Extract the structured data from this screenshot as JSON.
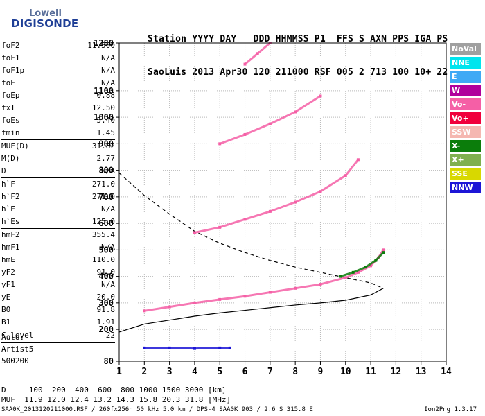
{
  "logo": {
    "line1": "Lowell",
    "line2": "DIGISONDE"
  },
  "header": {
    "row1": "Station YYYY DAY   DDD HHMMSS P1  FFS S AXN PPS IGA PS",
    "row2": "SaoLuis 2013 Apr30 120 211000 RSF 005 2 713 100 10+ 22"
  },
  "params": [
    {
      "name": "foF2",
      "value": "11.500"
    },
    {
      "name": "foF1",
      "value": "N/A"
    },
    {
      "name": "foF1p",
      "value": "N/A"
    },
    {
      "name": "foE",
      "value": "N/A"
    },
    {
      "name": "foEp",
      "value": "0.88"
    },
    {
      "name": "fxI",
      "value": "12.50"
    },
    {
      "name": "foEs",
      "value": "5.40"
    },
    {
      "name": "fmin",
      "value": "1.45"
    },
    {
      "sep": true
    },
    {
      "name": "MUF(D)",
      "value": "31.82"
    },
    {
      "name": "M(D)",
      "value": "2.77"
    },
    {
      "name": "D",
      "value": "N/A"
    },
    {
      "sep": true
    },
    {
      "name": "h`F",
      "value": "271.0"
    },
    {
      "name": "h`F2",
      "value": "271.0"
    },
    {
      "name": "h`E",
      "value": "N/A"
    },
    {
      "name": "h`Es",
      "value": "125.0"
    },
    {
      "sep": true
    },
    {
      "name": "hmF2",
      "value": "355.4"
    },
    {
      "name": "hmF1",
      "value": "N/A"
    },
    {
      "name": "hmE",
      "value": "110.0"
    },
    {
      "name": "yF2",
      "value": "91.0"
    },
    {
      "name": "yF1",
      "value": "N/A"
    },
    {
      "name": "yE",
      "value": "20.0"
    },
    {
      "name": "B0",
      "value": "91.8"
    },
    {
      "name": "B1",
      "value": "1.91"
    },
    {
      "sep": true
    },
    {
      "name": "C-level",
      "value": "22"
    },
    {
      "sep": true
    }
  ],
  "auto": {
    "line1": "Auto:",
    "line2": "Artist5",
    "line3": "500200"
  },
  "legend": [
    {
      "label": "NoVal",
      "color": "#a0a0a0"
    },
    {
      "label": "NNE",
      "color": "#00e5ee"
    },
    {
      "label": "E",
      "color": "#3fa9f5"
    },
    {
      "label": "W",
      "color": "#b0009c"
    },
    {
      "label": "Vo-",
      "color": "#f55fa6"
    },
    {
      "label": "Vo+",
      "color": "#f0003c"
    },
    {
      "label": "SSW",
      "color": "#f5b7b1"
    },
    {
      "label": "X-",
      "color": "#0b7d0b"
    },
    {
      "label": "X+",
      "color": "#7fb04f"
    },
    {
      "label": "SSE",
      "color": "#d8d800"
    },
    {
      "label": "NNW",
      "color": "#1c15d6"
    }
  ],
  "muf_table": {
    "row1": "D     100  200  400  600  800 1000 1500 3000 [km]",
    "row2": "MUF  11.9 12.0 12.4 13.2 14.3 15.8 20.3 31.8 [MHz]"
  },
  "footer": {
    "left": "SAA0K_2013120211000.RSF / 260fx256h 50 kHz 5.0 km / DPS-4 SAA0K 903 / 2.6 S 315.8 E",
    "right": "Ion2Png 1.3.17"
  },
  "chart_data": {
    "type": "scatter",
    "xlim": [
      1,
      14
    ],
    "ylim": [
      80,
      1280
    ],
    "x_ticks": [
      1,
      2,
      3,
      4,
      5,
      6,
      7,
      8,
      9,
      10,
      11,
      12,
      13,
      14
    ],
    "y_ticks": [
      80,
      200,
      300,
      400,
      500,
      600,
      700,
      800,
      900,
      1000,
      1100,
      1280
    ],
    "grid": true,
    "traces": [
      {
        "name": "O-trace F",
        "color": "#f55fa6",
        "x": [
          2.0,
          3.0,
          4.0,
          5.0,
          6.0,
          7.0,
          8.0,
          9.0,
          10.0,
          10.5,
          11.0,
          11.3,
          11.5
        ],
        "y": [
          270,
          285,
          300,
          313,
          325,
          340,
          355,
          370,
          395,
          415,
          440,
          470,
          500
        ]
      },
      {
        "name": "X-trace F",
        "color": "#0b7d0b",
        "x": [
          9.8,
          10.3,
          10.8,
          11.2,
          11.5
        ],
        "y": [
          400,
          415,
          435,
          460,
          490
        ]
      },
      {
        "name": "2F",
        "color": "#f55fa6",
        "x": [
          4.0,
          5.0,
          6.0,
          7.0,
          8.0,
          9.0,
          10.0,
          10.5
        ],
        "y": [
          565,
          585,
          615,
          645,
          680,
          720,
          780,
          840
        ]
      },
      {
        "name": "3F",
        "color": "#f55fa6",
        "x": [
          5.0,
          6.0,
          7.0,
          8.0,
          9.0
        ],
        "y": [
          900,
          935,
          975,
          1020,
          1080
        ]
      },
      {
        "name": "4F",
        "color": "#f55fa6",
        "x": [
          6.0,
          6.5,
          7.0
        ],
        "y": [
          1200,
          1240,
          1280
        ]
      },
      {
        "name": "Es",
        "color": "#1c15d6",
        "x": [
          2.0,
          3.0,
          4.0,
          5.0,
          5.4
        ],
        "y": [
          130,
          130,
          128,
          130,
          130
        ]
      }
    ],
    "profile_curve": {
      "x": [
        1.0,
        1.5,
        2.0,
        3.0,
        4.0,
        5.0,
        6.0,
        7.0,
        8.0,
        9.0,
        10.0,
        11.0,
        11.5
      ],
      "y": [
        190,
        205,
        220,
        235,
        250,
        262,
        272,
        282,
        292,
        300,
        310,
        330,
        355
      ]
    },
    "profile_dashed": {
      "x": [
        1.0,
        2.0,
        3.0,
        4.0,
        5.0,
        6.0,
        7.0,
        8.0,
        9.0,
        10.0,
        11.0,
        11.5
      ],
      "y": [
        790,
        705,
        635,
        570,
        525,
        490,
        460,
        435,
        415,
        395,
        375,
        355
      ]
    }
  }
}
